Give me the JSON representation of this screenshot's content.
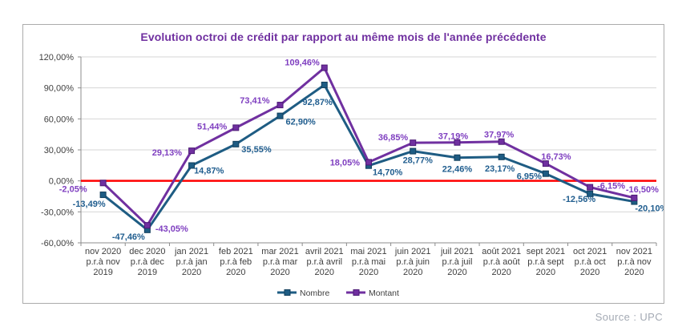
{
  "page": {
    "source_label": "Source : UPC"
  },
  "chart_data": {
    "type": "line",
    "title": "Evolution octroi de crédit par rapport au même mois de l'année précédente",
    "title_color": "#7030A0",
    "categories": [
      [
        "nov 2020",
        "p.r.à nov",
        "2019"
      ],
      [
        "dec 2020",
        "p.r.à dec",
        "2019"
      ],
      [
        "jan 2021",
        "p.r.à jan",
        "2020"
      ],
      [
        "feb 2021",
        "p.r.à feb",
        "2020"
      ],
      [
        "mar 2021",
        "p.r.à mar",
        "2020"
      ],
      [
        "avril 2021",
        "p.r.à avril",
        "2020"
      ],
      [
        "mai 2021",
        "p.r.à mai",
        "2020"
      ],
      [
        "juin 2021",
        "p.r.à juin",
        "2020"
      ],
      [
        "juil 2021",
        "p.r.à juil",
        "2020"
      ],
      [
        "août 2021",
        "p.r.à août",
        "2020"
      ],
      [
        "sept 2021",
        "p.r.à sept",
        "2020"
      ],
      [
        "oct 2021",
        "p.r.à oct",
        "2020"
      ],
      [
        "nov 2021",
        "p.r.à nov",
        "2020"
      ]
    ],
    "series": [
      {
        "name": "Nombre",
        "color": "#1E5C83",
        "marker_stroke": "#123F5C",
        "label_color": "#215E8F",
        "values": [
          -13.49,
          -47.46,
          14.87,
          35.55,
          62.9,
          92.87,
          14.7,
          28.77,
          22.46,
          23.17,
          6.95,
          -12.56,
          -20.1
        ],
        "labels": [
          "-13,49%",
          "-47,46%",
          "14,87%",
          "35,55%",
          "62,90%",
          "92,87%",
          "14,70%",
          "28,77%",
          "22,46%",
          "23,17%",
          "6,95%",
          "-12,56%",
          "-20,10%"
        ]
      },
      {
        "name": "Montant",
        "color": "#7030A0",
        "marker_stroke": "#4C1A75",
        "label_color": "#7F3FC0",
        "values": [
          -2.05,
          -43.05,
          29.13,
          51.44,
          73.41,
          109.46,
          18.05,
          36.85,
          37.19,
          37.97,
          16.73,
          -6.15,
          -16.5
        ],
        "labels": [
          "-2,05%",
          "-43,05%",
          "29,13%",
          "51,44%",
          "73,41%",
          "109,46%",
          "18,05%",
          "36,85%",
          "37,19%",
          "37,97%",
          "16,73%",
          "-6,15%",
          "-16,50%"
        ]
      }
    ],
    "y_axis": {
      "min": -60,
      "max": 120,
      "step": 30,
      "tick_labels": [
        "120,00%",
        "90,00%",
        "60,00%",
        "30,00%",
        "0,00%",
        "-30,00%",
        "-60,00%"
      ]
    },
    "zero_line": {
      "value": 0,
      "color": "#FF0000"
    },
    "grid": true,
    "grid_color": "#D6D6D6",
    "axis_color": "#8C8C8C",
    "axis_text_color": "#404040",
    "legend_position": "bottom"
  }
}
